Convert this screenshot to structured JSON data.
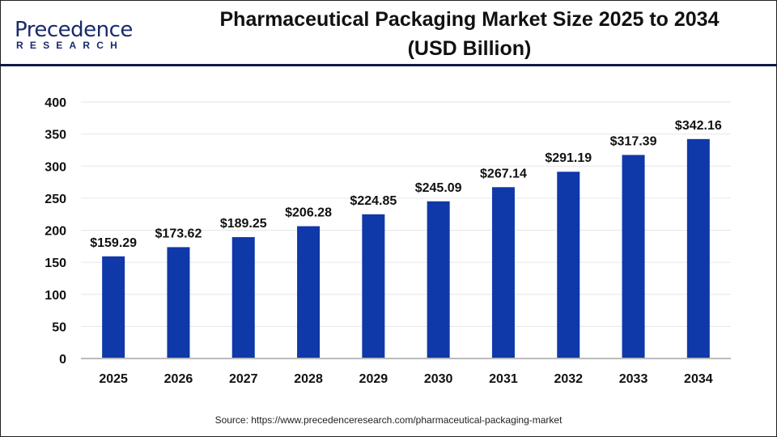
{
  "logo": {
    "text_main": "Precedence",
    "text_sub": "RESEARCH"
  },
  "title_line1": "Pharmaceutical Packaging Market Size 2025 to 2034",
  "title_line2": "(USD Billion)",
  "source": "Source: https://www.precedenceresearch.com/pharmaceutical-packaging-market",
  "colors": {
    "bar": "#0f38a8",
    "header_line": "#0f1a45",
    "grid": "#e6e6e6",
    "axis": "#bbbbbb"
  },
  "chart_data": {
    "type": "bar",
    "title": "Pharmaceutical Packaging Market Size 2025 to 2034 (USD Billion)",
    "categories": [
      "2025",
      "2026",
      "2027",
      "2028",
      "2029",
      "2030",
      "2031",
      "2032",
      "2033",
      "2034"
    ],
    "values": [
      159.29,
      173.62,
      189.25,
      206.28,
      224.85,
      245.09,
      267.14,
      291.19,
      317.39,
      342.16
    ],
    "data_labels": [
      "$159.29",
      "$173.62",
      "$189.25",
      "$206.28",
      "$224.85",
      "$245.09",
      "$267.14",
      "$291.19",
      "$317.39",
      "$342.16"
    ],
    "ylim": [
      0,
      400
    ],
    "yticks": [
      0,
      50,
      100,
      150,
      200,
      250,
      300,
      350,
      400
    ],
    "grid": true,
    "legend": "none"
  }
}
